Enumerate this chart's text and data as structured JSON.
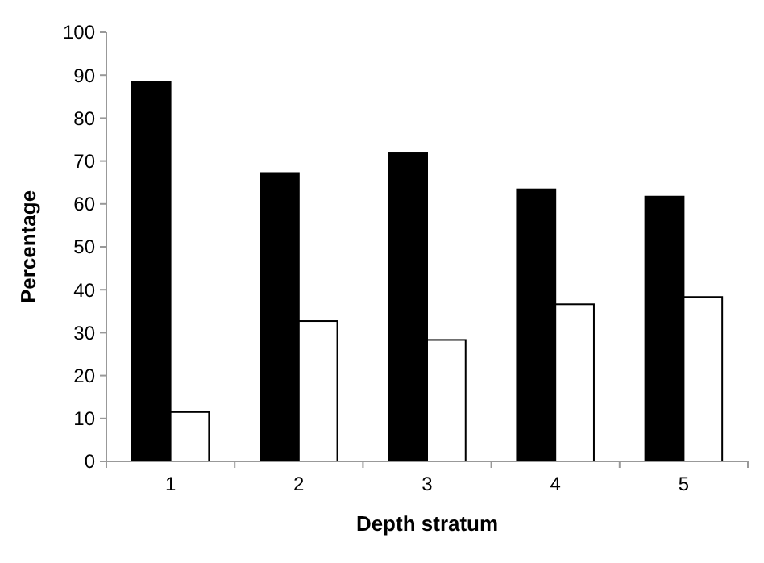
{
  "chart_data": {
    "type": "bar",
    "xlabel": "Depth stratum",
    "ylabel": "Percentage",
    "categories": [
      "1",
      "2",
      "3",
      "4",
      "5"
    ],
    "series": [
      {
        "color": "#000000",
        "values": [
          88.5,
          67.2,
          71.8,
          63.4,
          61.7
        ]
      },
      {
        "color": "#ffffff",
        "values": [
          11.5,
          32.7,
          28.3,
          36.6,
          38.3
        ]
      }
    ],
    "ylim": [
      0,
      100
    ],
    "yticks": [
      0,
      10,
      20,
      30,
      40,
      50,
      60,
      70,
      80,
      90,
      100
    ],
    "grid": false
  }
}
